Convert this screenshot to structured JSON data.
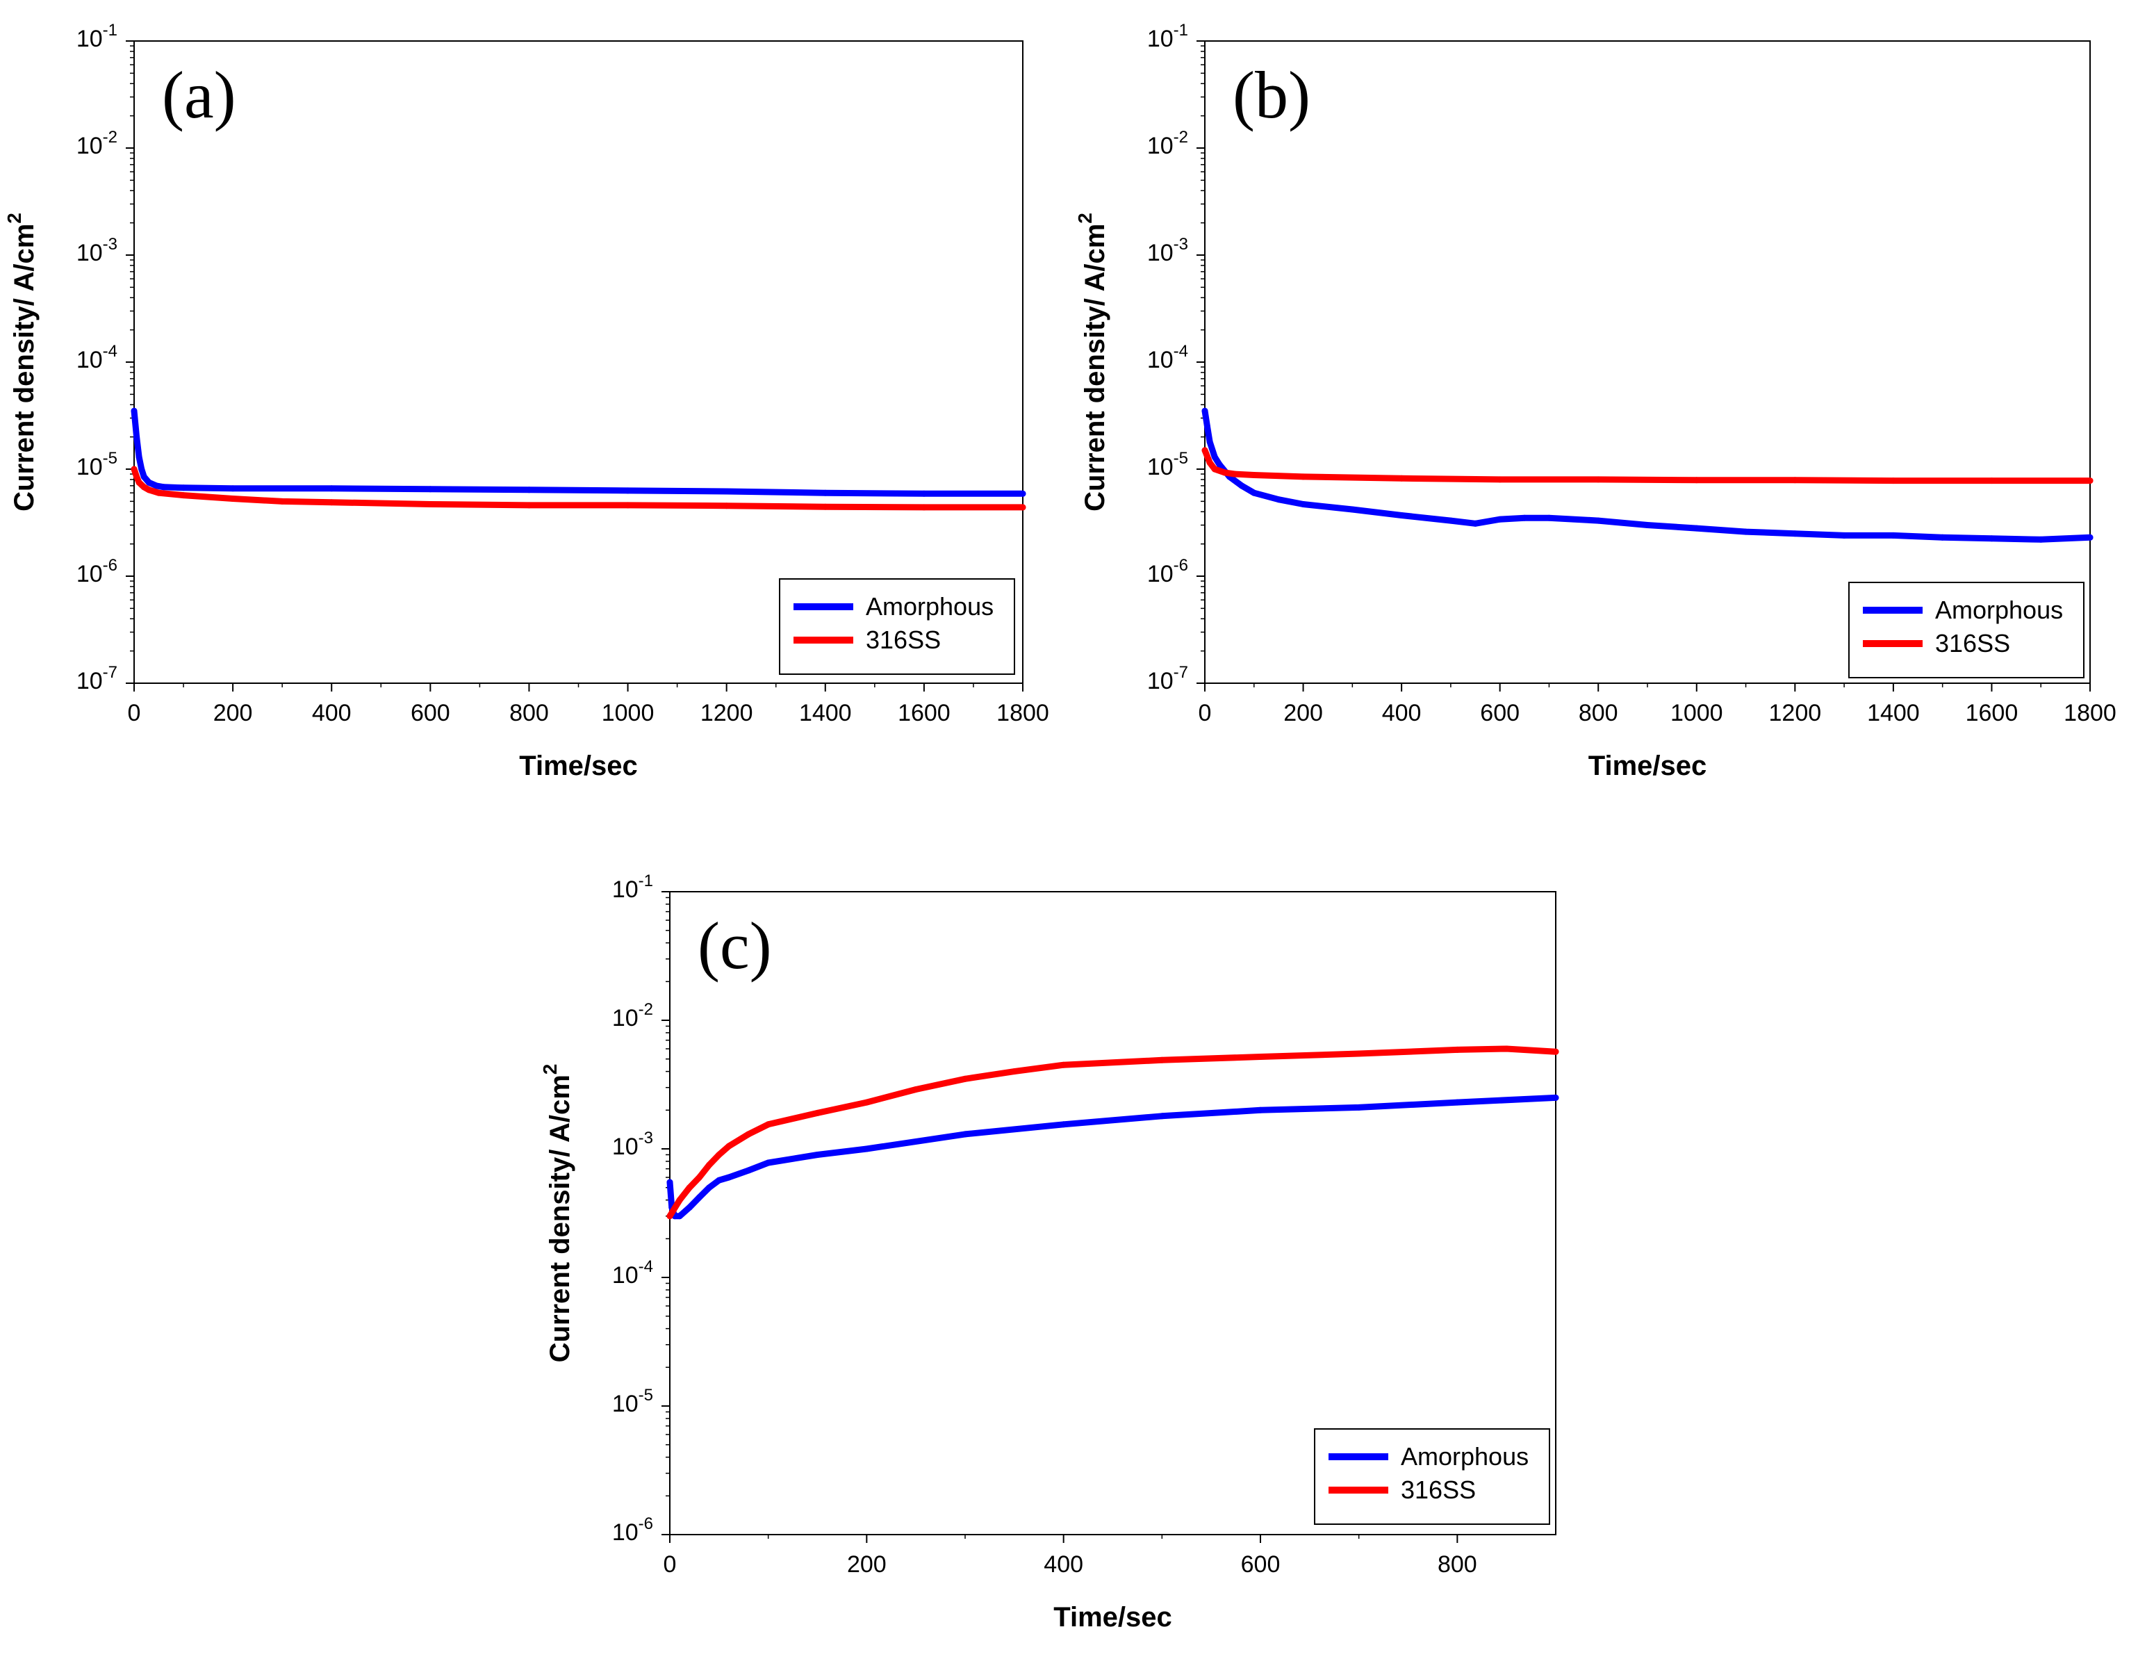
{
  "figure": {
    "panels": [
      {
        "label": "(a)",
        "xlabel": "Time/sec",
        "ylabel": "Current density/ A/cm",
        "ylabel_sup": "2"
      },
      {
        "label": "(b)",
        "xlabel": "Time/sec",
        "ylabel": "Current density/ A/cm",
        "ylabel_sup": "2"
      },
      {
        "label": "(c)",
        "xlabel": "Time/sec",
        "ylabel": "Current density/ A/cm",
        "ylabel_sup": "2"
      }
    ]
  },
  "chart_data": [
    {
      "type": "line",
      "panel": "(a)",
      "xlabel": "Time/sec",
      "ylabel": "Current density/ A/cm2",
      "xlim": [
        0,
        1800
      ],
      "xticks": [
        0,
        200,
        400,
        600,
        800,
        1000,
        1200,
        1400,
        1600,
        1800
      ],
      "ylim": [
        1e-07,
        0.1
      ],
      "yscale": "log",
      "yticks": [
        {
          "base": "10",
          "exp": "-7"
        },
        {
          "base": "10",
          "exp": "-6"
        },
        {
          "base": "10",
          "exp": "-5"
        },
        {
          "base": "10",
          "exp": "-4"
        },
        {
          "base": "10",
          "exp": "-3"
        },
        {
          "base": "10",
          "exp": "-2"
        },
        {
          "base": "10",
          "exp": "-1"
        }
      ],
      "legend_position": "bottom-right",
      "series": [
        {
          "name": "Amorphous",
          "color": "#0000ff",
          "x": [
            0,
            5,
            10,
            15,
            20,
            30,
            45,
            60,
            100,
            200,
            400,
            600,
            800,
            1000,
            1200,
            1400,
            1600,
            1800
          ],
          "y": [
            3.5e-05,
            2e-05,
            1.3e-05,
            1e-05,
            8.5e-06,
            7.5e-06,
            7e-06,
            6.8e-06,
            6.7e-06,
            6.6e-06,
            6.6e-06,
            6.5e-06,
            6.4e-06,
            6.3e-06,
            6.2e-06,
            6e-06,
            5.9e-06,
            5.9e-06
          ]
        },
        {
          "name": "316SS",
          "color": "#ff0000",
          "x": [
            0,
            5,
            10,
            20,
            30,
            50,
            100,
            200,
            300,
            400,
            600,
            800,
            1000,
            1200,
            1400,
            1600,
            1800
          ],
          "y": [
            1e-05,
            8.5e-06,
            7.5e-06,
            6.8e-06,
            6.4e-06,
            6e-06,
            5.7e-06,
            5.3e-06,
            5e-06,
            4.9e-06,
            4.7e-06,
            4.6e-06,
            4.6e-06,
            4.55e-06,
            4.45e-06,
            4.4e-06,
            4.4e-06
          ]
        }
      ]
    },
    {
      "type": "line",
      "panel": "(b)",
      "xlabel": "Time/sec",
      "ylabel": "Current density/ A/cm2",
      "xlim": [
        0,
        1800
      ],
      "xticks": [
        0,
        200,
        400,
        600,
        800,
        1000,
        1200,
        1400,
        1600,
        1800
      ],
      "ylim": [
        1e-07,
        0.1
      ],
      "yscale": "log",
      "yticks": [
        {
          "base": "10",
          "exp": "-7"
        },
        {
          "base": "10",
          "exp": "-6"
        },
        {
          "base": "10",
          "exp": "-5"
        },
        {
          "base": "10",
          "exp": "-4"
        },
        {
          "base": "10",
          "exp": "-3"
        },
        {
          "base": "10",
          "exp": "-2"
        },
        {
          "base": "10",
          "exp": "-1"
        }
      ],
      "legend_position": "bottom-right",
      "series": [
        {
          "name": "Amorphous",
          "color": "#0000ff",
          "x": [
            0,
            5,
            10,
            20,
            30,
            50,
            75,
            100,
            150,
            200,
            300,
            400,
            500,
            550,
            600,
            650,
            700,
            800,
            900,
            1000,
            1100,
            1200,
            1300,
            1400,
            1500,
            1600,
            1700,
            1800
          ],
          "y": [
            3.5e-05,
            2.5e-05,
            1.8e-05,
            1.3e-05,
            1.1e-05,
            8.5e-06,
            7e-06,
            6e-06,
            5.2e-06,
            4.7e-06,
            4.2e-06,
            3.7e-06,
            3.3e-06,
            3.1e-06,
            3.4e-06,
            3.5e-06,
            3.5e-06,
            3.3e-06,
            3e-06,
            2.8e-06,
            2.6e-06,
            2.5e-06,
            2.4e-06,
            2.4e-06,
            2.3e-06,
            2.25e-06,
            2.2e-06,
            2.3e-06
          ]
        },
        {
          "name": "316SS",
          "color": "#ff0000",
          "x": [
            0,
            10,
            20,
            40,
            60,
            100,
            200,
            400,
            600,
            800,
            1000,
            1200,
            1400,
            1600,
            1800
          ],
          "y": [
            1.5e-05,
            1.15e-05,
            1e-05,
            9.3e-06,
            9e-06,
            8.8e-06,
            8.5e-06,
            8.2e-06,
            8e-06,
            8e-06,
            7.9e-06,
            7.9e-06,
            7.8e-06,
            7.8e-06,
            7.8e-06
          ]
        }
      ]
    },
    {
      "type": "line",
      "panel": "(c)",
      "xlabel": "Time/sec",
      "ylabel": "Current density/ A/cm2",
      "xlim": [
        0,
        900
      ],
      "xticks": [
        0,
        200,
        400,
        600,
        800
      ],
      "ylim": [
        1e-06,
        0.1
      ],
      "yscale": "log",
      "yticks": [
        {
          "base": "10",
          "exp": "-6"
        },
        {
          "base": "10",
          "exp": "-5"
        },
        {
          "base": "10",
          "exp": "-4"
        },
        {
          "base": "10",
          "exp": "-3"
        },
        {
          "base": "10",
          "exp": "-2"
        },
        {
          "base": "10",
          "exp": "-1"
        }
      ],
      "legend_position": "bottom-right",
      "series": [
        {
          "name": "Amorphous",
          "color": "#0000ff",
          "x": [
            0,
            2,
            5,
            10,
            20,
            30,
            40,
            50,
            60,
            80,
            100,
            150,
            200,
            300,
            400,
            500,
            600,
            700,
            800,
            900
          ],
          "y": [
            0.00055,
            0.00035,
            0.0003,
            0.0003,
            0.00035,
            0.00042,
            0.0005,
            0.00057,
            0.0006,
            0.00068,
            0.00078,
            0.0009,
            0.001,
            0.0013,
            0.00155,
            0.0018,
            0.002,
            0.0021,
            0.0023,
            0.0025
          ]
        },
        {
          "name": "316SS",
          "color": "#ff0000",
          "x": [
            0,
            10,
            20,
            30,
            40,
            50,
            60,
            80,
            100,
            150,
            200,
            250,
            300,
            350,
            400,
            500,
            600,
            700,
            800,
            850,
            900
          ],
          "y": [
            0.0003,
            0.0004,
            0.0005,
            0.0006,
            0.00075,
            0.0009,
            0.00105,
            0.0013,
            0.00155,
            0.0019,
            0.0023,
            0.0029,
            0.0035,
            0.004,
            0.0045,
            0.0049,
            0.0052,
            0.0055,
            0.0059,
            0.006,
            0.0057
          ]
        }
      ]
    }
  ]
}
